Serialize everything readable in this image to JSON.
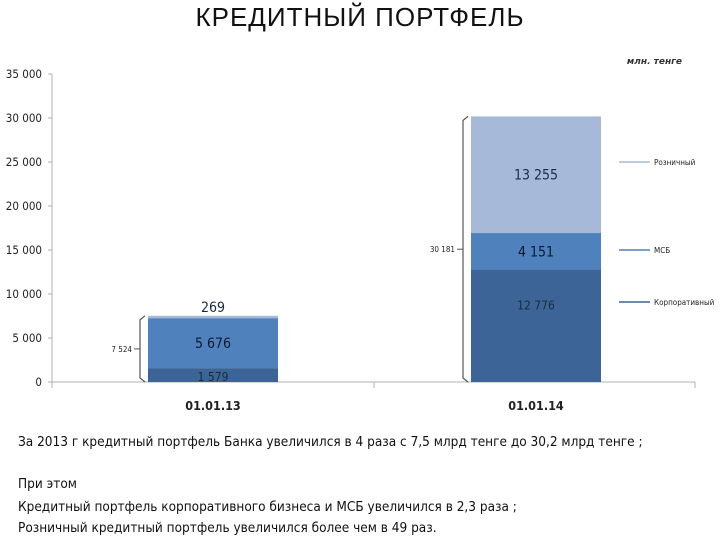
{
  "title": "КРЕДИТНЫЙ ПОРТФЕЛЬ",
  "chart_data": {
    "type": "bar",
    "stacked": true,
    "unit_label": "млн. тенге",
    "categories": [
      "01.01.13",
      "01.01.14"
    ],
    "series": [
      {
        "name": "Корпоративный",
        "values": [
          1579,
          12776
        ],
        "labels": [
          "1 579",
          "12 776"
        ],
        "color": "#3d6497"
      },
      {
        "name": "МСБ",
        "values": [
          5676,
          4151
        ],
        "labels": [
          "5 676",
          "4 151"
        ],
        "color": "#4f81bd"
      },
      {
        "name": "Розничный",
        "values": [
          269,
          13255
        ],
        "labels": [
          "269",
          "13 255"
        ],
        "color": "#a6b9d9"
      }
    ],
    "totals": [
      "7 524",
      "30 181"
    ],
    "ylim": [
      0,
      35000
    ],
    "yticks": [
      0,
      5000,
      10000,
      15000,
      20000,
      25000,
      30000,
      35000
    ],
    "ytick_labels": [
      "0",
      "5 000",
      "10 000",
      "15 000",
      "20 000",
      "25 000",
      "30 000",
      "35 000"
    ],
    "grid": false,
    "legend_position": "right"
  },
  "summary": "За 2013 г кредитный портфель Банка увеличился в 4 раза с 7,5 млрд тенге до 30,2 млрд тенге ;",
  "note_heading": "При этом",
  "notes": [
    "Кредитный портфель корпоративного бизнеса и МСБ увеличился в 2,3 раза ;",
    "Розничный кредитный портфель увеличился более чем в 49 раз."
  ]
}
